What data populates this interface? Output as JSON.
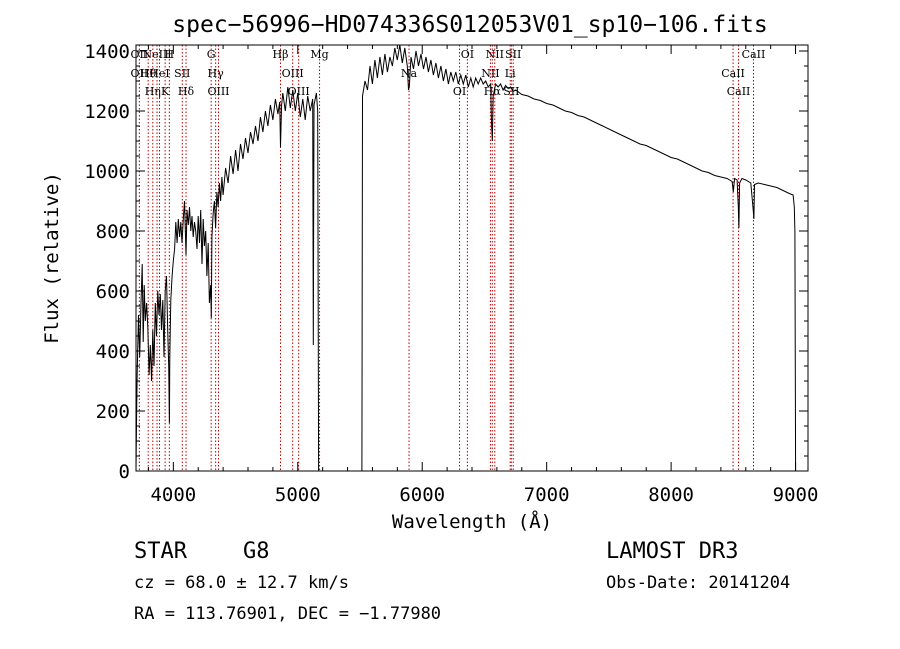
{
  "chart_data": {
    "type": "line",
    "title": "spec−56996−HD074336S012053V01_sp10−106.fits",
    "xlabel": "Wavelength (Å)",
    "ylabel": "Flux (relative)",
    "xlim": [
      3700,
      9100
    ],
    "ylim": [
      0,
      1420
    ],
    "xticks": [
      4000,
      5000,
      6000,
      7000,
      8000,
      9000
    ],
    "yticks": [
      0,
      200,
      400,
      600,
      800,
      1000,
      1200,
      1400
    ],
    "grid": false,
    "series": [
      {
        "name": "flux",
        "points": [
          [
            3700,
            0
          ],
          [
            3705,
            180
          ],
          [
            3710,
            330
          ],
          [
            3720,
            520
          ],
          [
            3730,
            380
          ],
          [
            3740,
            560
          ],
          [
            3750,
            690
          ],
          [
            3758,
            430
          ],
          [
            3766,
            620
          ],
          [
            3775,
            500
          ],
          [
            3785,
            560
          ],
          [
            3795,
            480
          ],
          [
            3805,
            320
          ],
          [
            3815,
            420
          ],
          [
            3825,
            300
          ],
          [
            3835,
            470
          ],
          [
            3845,
            350
          ],
          [
            3855,
            560
          ],
          [
            3865,
            450
          ],
          [
            3875,
            600
          ],
          [
            3885,
            520
          ],
          [
            3895,
            590
          ],
          [
            3905,
            470
          ],
          [
            3915,
            570
          ],
          [
            3925,
            380
          ],
          [
            3935,
            600
          ],
          [
            3945,
            650
          ],
          [
            3955,
            470
          ],
          [
            3963,
            350
          ],
          [
            3968,
            160
          ],
          [
            3972,
            380
          ],
          [
            3980,
            570
          ],
          [
            3990,
            650
          ],
          [
            4000,
            700
          ],
          [
            4010,
            740
          ],
          [
            4020,
            830
          ],
          [
            4030,
            760
          ],
          [
            4040,
            840
          ],
          [
            4050,
            780
          ],
          [
            4060,
            830
          ],
          [
            4070,
            760
          ],
          [
            4080,
            840
          ],
          [
            4090,
            900
          ],
          [
            4102,
            720
          ],
          [
            4110,
            870
          ],
          [
            4120,
            820
          ],
          [
            4130,
            880
          ],
          [
            4140,
            800
          ],
          [
            4150,
            850
          ],
          [
            4160,
            780
          ],
          [
            4170,
            830
          ],
          [
            4180,
            800
          ],
          [
            4190,
            740
          ],
          [
            4200,
            850
          ],
          [
            4210,
            760
          ],
          [
            4220,
            870
          ],
          [
            4230,
            690
          ],
          [
            4240,
            840
          ],
          [
            4250,
            750
          ],
          [
            4260,
            800
          ],
          [
            4270,
            650
          ],
          [
            4280,
            760
          ],
          [
            4290,
            560
          ],
          [
            4300,
            620
          ],
          [
            4305,
            510
          ],
          [
            4310,
            780
          ],
          [
            4320,
            860
          ],
          [
            4330,
            900
          ],
          [
            4340,
            810
          ],
          [
            4350,
            930
          ],
          [
            4360,
            880
          ],
          [
            4370,
            960
          ],
          [
            4380,
            900
          ],
          [
            4390,
            980
          ],
          [
            4400,
            920
          ],
          [
            4420,
            1010
          ],
          [
            4440,
            960
          ],
          [
            4460,
            1050
          ],
          [
            4480,
            990
          ],
          [
            4500,
            1070
          ],
          [
            4520,
            1000
          ],
          [
            4540,
            1090
          ],
          [
            4560,
            1040
          ],
          [
            4580,
            1110
          ],
          [
            4600,
            1060
          ],
          [
            4620,
            1130
          ],
          [
            4640,
            1090
          ],
          [
            4660,
            1150
          ],
          [
            4680,
            1100
          ],
          [
            4700,
            1180
          ],
          [
            4720,
            1130
          ],
          [
            4740,
            1200
          ],
          [
            4760,
            1150
          ],
          [
            4780,
            1220
          ],
          [
            4800,
            1170
          ],
          [
            4820,
            1240
          ],
          [
            4840,
            1190
          ],
          [
            4855,
            1230
          ],
          [
            4861,
            1080
          ],
          [
            4870,
            1220
          ],
          [
            4880,
            1260
          ],
          [
            4900,
            1200
          ],
          [
            4920,
            1280
          ],
          [
            4940,
            1210
          ],
          [
            4960,
            1270
          ],
          [
            4980,
            1200
          ],
          [
            5000,
            1260
          ],
          [
            5020,
            1180
          ],
          [
            5040,
            1240
          ],
          [
            5060,
            1170
          ],
          [
            5080,
            1250
          ],
          [
            5100,
            1200
          ],
          [
            5120,
            1240
          ],
          [
            5125,
            420
          ],
          [
            5130,
            1220
          ],
          [
            5150,
            1260
          ],
          [
            5160,
            1200
          ],
          [
            5167,
            0
          ],
          [
            5515,
            0
          ],
          [
            5520,
            1250
          ],
          [
            5540,
            1300
          ],
          [
            5560,
            1270
          ],
          [
            5580,
            1350
          ],
          [
            5600,
            1290
          ],
          [
            5620,
            1370
          ],
          [
            5640,
            1310
          ],
          [
            5660,
            1380
          ],
          [
            5680,
            1320
          ],
          [
            5700,
            1390
          ],
          [
            5720,
            1330
          ],
          [
            5740,
            1380
          ],
          [
            5760,
            1350
          ],
          [
            5780,
            1410
          ],
          [
            5800,
            1370
          ],
          [
            5820,
            1420
          ],
          [
            5840,
            1360
          ],
          [
            5860,
            1410
          ],
          [
            5880,
            1350
          ],
          [
            5890,
            1270
          ],
          [
            5896,
            1280
          ],
          [
            5910,
            1380
          ],
          [
            5930,
            1340
          ],
          [
            5950,
            1400
          ],
          [
            5970,
            1350
          ],
          [
            5990,
            1390
          ],
          [
            6010,
            1340
          ],
          [
            6030,
            1380
          ],
          [
            6050,
            1330
          ],
          [
            6070,
            1370
          ],
          [
            6090,
            1320
          ],
          [
            6110,
            1360
          ],
          [
            6130,
            1310
          ],
          [
            6150,
            1350
          ],
          [
            6170,
            1300
          ],
          [
            6190,
            1340
          ],
          [
            6210,
            1290
          ],
          [
            6230,
            1330
          ],
          [
            6250,
            1300
          ],
          [
            6270,
            1330
          ],
          [
            6290,
            1290
          ],
          [
            6310,
            1320
          ],
          [
            6330,
            1290
          ],
          [
            6350,
            1320
          ],
          [
            6370,
            1280
          ],
          [
            6390,
            1310
          ],
          [
            6410,
            1280
          ],
          [
            6430,
            1310
          ],
          [
            6450,
            1290
          ],
          [
            6470,
            1310
          ],
          [
            6490,
            1290
          ],
          [
            6510,
            1300
          ],
          [
            6530,
            1280
          ],
          [
            6550,
            1290
          ],
          [
            6556,
            1170
          ],
          [
            6563,
            1100
          ],
          [
            6570,
            1250
          ],
          [
            6590,
            1290
          ],
          [
            6610,
            1280
          ],
          [
            6630,
            1290
          ],
          [
            6650,
            1270
          ],
          [
            6670,
            1285
          ],
          [
            6690,
            1275
          ],
          [
            6710,
            1280
          ],
          [
            6730,
            1265
          ],
          [
            6750,
            1270
          ],
          [
            6800,
            1255
          ],
          [
            6850,
            1250
          ],
          [
            6900,
            1240
          ],
          [
            6950,
            1235
          ],
          [
            7000,
            1225
          ],
          [
            7050,
            1220
          ],
          [
            7100,
            1210
          ],
          [
            7150,
            1200
          ],
          [
            7200,
            1195
          ],
          [
            7250,
            1185
          ],
          [
            7300,
            1180
          ],
          [
            7350,
            1170
          ],
          [
            7400,
            1160
          ],
          [
            7450,
            1150
          ],
          [
            7500,
            1140
          ],
          [
            7550,
            1130
          ],
          [
            7600,
            1120
          ],
          [
            7650,
            1110
          ],
          [
            7700,
            1100
          ],
          [
            7750,
            1090
          ],
          [
            7800,
            1085
          ],
          [
            7850,
            1075
          ],
          [
            7900,
            1065
          ],
          [
            7950,
            1055
          ],
          [
            8000,
            1045
          ],
          [
            8050,
            1040
          ],
          [
            8100,
            1030
          ],
          [
            8150,
            1020
          ],
          [
            8200,
            1010
          ],
          [
            8250,
            1000
          ],
          [
            8300,
            995
          ],
          [
            8350,
            985
          ],
          [
            8400,
            980
          ],
          [
            8450,
            975
          ],
          [
            8490,
            965
          ],
          [
            8500,
            930
          ],
          [
            8510,
            975
          ],
          [
            8530,
            970
          ],
          [
            8540,
            880
          ],
          [
            8545,
            810
          ],
          [
            8550,
            960
          ],
          [
            8570,
            975
          ],
          [
            8600,
            970
          ],
          [
            8640,
            960
          ],
          [
            8660,
            870
          ],
          [
            8665,
            840
          ],
          [
            8670,
            955
          ],
          [
            8700,
            960
          ],
          [
            8750,
            955
          ],
          [
            8800,
            950
          ],
          [
            8850,
            945
          ],
          [
            8900,
            935
          ],
          [
            8950,
            925
          ],
          [
            8980,
            920
          ],
          [
            8990,
            880
          ],
          [
            8995,
            800
          ],
          [
            9000,
            0
          ]
        ]
      }
    ],
    "line_markers": [
      {
        "w": 3727,
        "labels": [
          "OII",
          "OII"
        ]
      },
      {
        "w": 3798,
        "labels": [
          "Hθ"
        ]
      },
      {
        "w": 3835,
        "labels": [
          "Hη"
        ]
      },
      {
        "w": 3869,
        "labels": [
          "NeIII"
        ]
      },
      {
        "w": 3889,
        "labels": [
          "HeI"
        ]
      },
      {
        "w": 3934,
        "labels": [
          "K"
        ]
      },
      {
        "w": 3968,
        "labels": [
          "H"
        ]
      },
      {
        "w": 4072,
        "labels": [
          "SII"
        ]
      },
      {
        "w": 4102,
        "labels": [
          "Hδ"
        ]
      },
      {
        "w": 4304,
        "labels": [
          "G"
        ]
      },
      {
        "w": 4340,
        "labels": [
          "Hγ"
        ]
      },
      {
        "w": 4363,
        "labels": [
          "OIII"
        ]
      },
      {
        "w": 4861,
        "labels": [
          "Hβ"
        ]
      },
      {
        "w": 4959,
        "labels": [
          "OIII"
        ]
      },
      {
        "w": 5007,
        "labels": [
          "OIII"
        ]
      },
      {
        "w": 5175,
        "labels": [
          "Mg"
        ]
      },
      {
        "w": 5894,
        "labels": [
          "Na"
        ]
      },
      {
        "w": 6300,
        "labels": [
          "OI"
        ]
      },
      {
        "w": 6363,
        "labels": [
          "OI"
        ]
      },
      {
        "w": 6548,
        "labels": [
          "NII"
        ]
      },
      {
        "w": 6563,
        "labels": [
          "Hα"
        ]
      },
      {
        "w": 6583,
        "labels": [
          "NII"
        ]
      },
      {
        "w": 6707,
        "labels": [
          "Li"
        ]
      },
      {
        "w": 6716,
        "labels": [
          "SII"
        ]
      },
      {
        "w": 6731,
        "labels": [
          "SII"
        ]
      },
      {
        "w": 8498,
        "labels": [
          "CaII"
        ]
      },
      {
        "w": 8542,
        "labels": [
          "CaII"
        ]
      },
      {
        "w": 8662,
        "labels": [
          "CaII"
        ]
      }
    ]
  },
  "info": {
    "class_label": "STAR",
    "subclass": "G8",
    "survey": "LAMOST DR3",
    "cz": "cz = 68.0 ± 12.7 km/s",
    "obs_date": "Obs-Date: 20141204",
    "radec": "RA = 113.76901, DEC =  −1.77980"
  },
  "colors": {
    "spectrum": "#000000",
    "marker": "#c00000",
    "axes": "#000000"
  }
}
